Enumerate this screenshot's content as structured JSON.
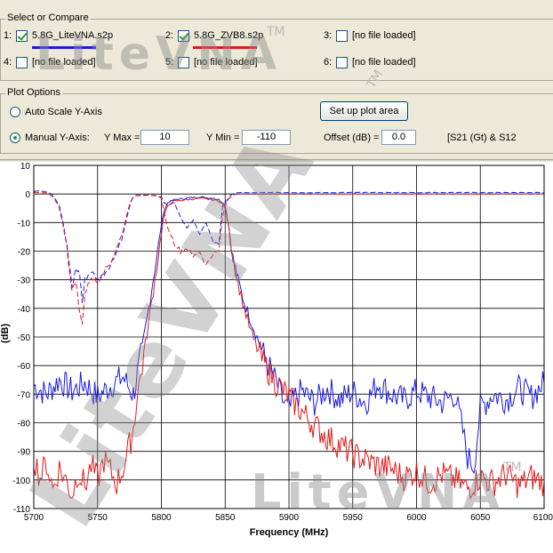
{
  "watermark": "LiteVNA",
  "watermark_tm": "TM",
  "select_group": {
    "title": "Select or Compare",
    "slots": [
      {
        "index": "1:",
        "checked": true,
        "name": "5.8G_LiteVNA.s2p",
        "color": "#1a1ae0"
      },
      {
        "index": "2:",
        "checked": true,
        "name": "5.8G_ZVB8.s2p",
        "color": "#e01a1a"
      },
      {
        "index": "3:",
        "checked": false,
        "name": "[no file loaded]"
      },
      {
        "index": "4:",
        "checked": false,
        "name": "[no file loaded]"
      },
      {
        "index": "5:",
        "checked": false,
        "name": "[no file loaded]"
      },
      {
        "index": "6:",
        "checked": false,
        "name": "[no file loaded]"
      }
    ]
  },
  "plot_options": {
    "title": "Plot Options",
    "auto_scale_label": "Auto Scale Y-Axis",
    "manual_label": "Manual Y-Axis:",
    "ymax_label": "Y Max =",
    "ymax_value": "10",
    "ymin_label": "Y Min =",
    "ymin_value": "-110",
    "offset_label": "Offset (dB) =",
    "offset_value": "0.0",
    "params_label": "[S21 (Gt) & S12",
    "setup_button": "Set up plot area",
    "selected_mode": "manual"
  },
  "chart_data": {
    "type": "line",
    "xlabel": "Frequency (MHz)",
    "ylabel": "(dB)",
    "xlim": [
      5700,
      6100
    ],
    "ylim": [
      -110,
      10
    ],
    "x_ticks": [
      5700,
      5750,
      5800,
      5850,
      5900,
      5950,
      6000,
      6050,
      6100
    ],
    "y_ticks": [
      10,
      0,
      -10,
      -20,
      -30,
      -40,
      -50,
      -60,
      -70,
      -80,
      -90,
      -100,
      -110
    ],
    "grid": true,
    "series": [
      {
        "name": "5.8G_LiteVNA.s2p S21",
        "color": "#1a1ae0",
        "dash": "solid",
        "x": [
          5700,
          5710,
          5720,
          5730,
          5740,
          5750,
          5760,
          5770,
          5775,
          5778,
          5780,
          5785,
          5790,
          5795,
          5800,
          5802,
          5805,
          5810,
          5820,
          5830,
          5840,
          5845,
          5848,
          5850,
          5853,
          5856,
          5860,
          5865,
          5870,
          5875,
          5880,
          5885,
          5890,
          5895,
          5900,
          5905,
          5910,
          5920,
          5930,
          5940,
          5950,
          5960,
          5970,
          5980,
          5990,
          6000,
          6010,
          6020,
          6030,
          6035,
          6040,
          6045,
          6050,
          6060,
          6070,
          6080,
          6090,
          6100
        ],
        "y": [
          -67,
          -70,
          -65,
          -69,
          -66,
          -71,
          -67,
          -64,
          -68,
          -70,
          -66,
          -54,
          -40,
          -26,
          -11,
          -6,
          -3,
          -2,
          -1.5,
          -1,
          -1.5,
          -2,
          -3,
          -4,
          -12,
          -22,
          -30,
          -38,
          -44,
          -50,
          -56,
          -61,
          -66,
          -72,
          -76,
          -71,
          -69,
          -73,
          -68,
          -72,
          -69,
          -73,
          -66,
          -70,
          -72,
          -69,
          -71,
          -73,
          -70,
          -80,
          -92,
          -95,
          -75,
          -70,
          -72,
          -68,
          -71,
          -66
        ]
      },
      {
        "name": "5.8G_LiteVNA.s2p S12",
        "color": "#1a1ae0",
        "dash": "dash",
        "x": [
          5700,
          5708,
          5712,
          5716,
          5720,
          5723,
          5726,
          5728,
          5730,
          5733,
          5736,
          5738,
          5740,
          5745,
          5750,
          5755,
          5760,
          5765,
          5770,
          5773,
          5776,
          5778,
          5780,
          5782,
          5785,
          5790,
          5795,
          5800,
          5802,
          5805,
          5810,
          5815,
          5820,
          5825,
          5830,
          5835,
          5840,
          5845,
          5848,
          5850,
          5853,
          5856,
          5860,
          5870,
          5880,
          5900,
          5950,
          6000,
          6050,
          6100
        ],
        "y": [
          1,
          1,
          0.5,
          -1,
          -4,
          -10,
          -18,
          -25,
          -33,
          -26,
          -28,
          -38,
          -30,
          -27,
          -30,
          -28,
          -25,
          -20,
          -14,
          -8,
          -3,
          -1,
          -0.5,
          -0.5,
          -0.5,
          -0.5,
          -0.5,
          -1,
          -3,
          -4,
          -3,
          -8,
          -12,
          -9,
          -14,
          -10,
          -16,
          -18,
          -4,
          -3,
          -1,
          0,
          0.5,
          0.5,
          0.5,
          0.5,
          0.5,
          0.5,
          0.5,
          0.5
        ]
      },
      {
        "name": "5.8G_ZVB8.s2p S21",
        "color": "#e01a1a",
        "dash": "solid",
        "x": [
          5700,
          5705,
          5710,
          5715,
          5720,
          5725,
          5730,
          5735,
          5740,
          5745,
          5750,
          5755,
          5760,
          5765,
          5770,
          5775,
          5778,
          5780,
          5785,
          5790,
          5795,
          5800,
          5802,
          5805,
          5810,
          5820,
          5830,
          5840,
          5845,
          5848,
          5850,
          5853,
          5856,
          5860,
          5865,
          5870,
          5875,
          5880,
          5890,
          5900,
          5910,
          5920,
          5930,
          5940,
          5950,
          5960,
          5970,
          5980,
          5990,
          6000,
          6010,
          6020,
          6030,
          6040,
          6050,
          6060,
          6070,
          6080,
          6090,
          6100
        ],
        "y": [
          -92,
          -99,
          -94,
          -103,
          -96,
          -100,
          -105,
          -97,
          -102,
          -95,
          -100,
          -93,
          -97,
          -101,
          -96,
          -88,
          -82,
          -74,
          -60,
          -45,
          -30,
          -14,
          -8,
          -4,
          -2.5,
          -2,
          -1.5,
          -2,
          -2.5,
          -3.5,
          -5,
          -12,
          -22,
          -31,
          -40,
          -48,
          -54,
          -59,
          -66,
          -71,
          -76,
          -81,
          -85,
          -88,
          -91,
          -93,
          -95,
          -96,
          -99,
          -97,
          -101,
          -98,
          -100,
          -103,
          -99,
          -101,
          -98,
          -102,
          -99,
          -101
        ]
      },
      {
        "name": "5.8G_ZVB8.s2p S12",
        "color": "#e01a1a",
        "dash": "dash",
        "x": [
          5700,
          5708,
          5712,
          5716,
          5720,
          5723,
          5726,
          5728,
          5730,
          5733,
          5736,
          5738,
          5740,
          5745,
          5750,
          5755,
          5760,
          5765,
          5770,
          5773,
          5776,
          5778,
          5780,
          5782,
          5785,
          5790,
          5795,
          5800,
          5802,
          5805,
          5810,
          5815,
          5820,
          5825,
          5830,
          5835,
          5840,
          5845,
          5848,
          5850,
          5853,
          5856,
          5860,
          5870,
          5880,
          5900,
          5950,
          6000,
          6050,
          6100
        ],
        "y": [
          0.5,
          0.5,
          0,
          -1.5,
          -5,
          -11,
          -19,
          -27,
          -34,
          -30,
          -42,
          -45,
          -35,
          -29,
          -31,
          -27,
          -24,
          -19,
          -13,
          -7,
          -2.5,
          -1,
          -0.5,
          -0.5,
          -0.5,
          -0.5,
          -0.5,
          -1.5,
          -6,
          -12,
          -17,
          -20,
          -19,
          -22,
          -20,
          -25,
          -21,
          -20,
          -8,
          -4,
          -1.5,
          -0.5,
          0,
          0,
          0,
          0,
          0,
          0,
          0,
          0
        ]
      }
    ]
  }
}
